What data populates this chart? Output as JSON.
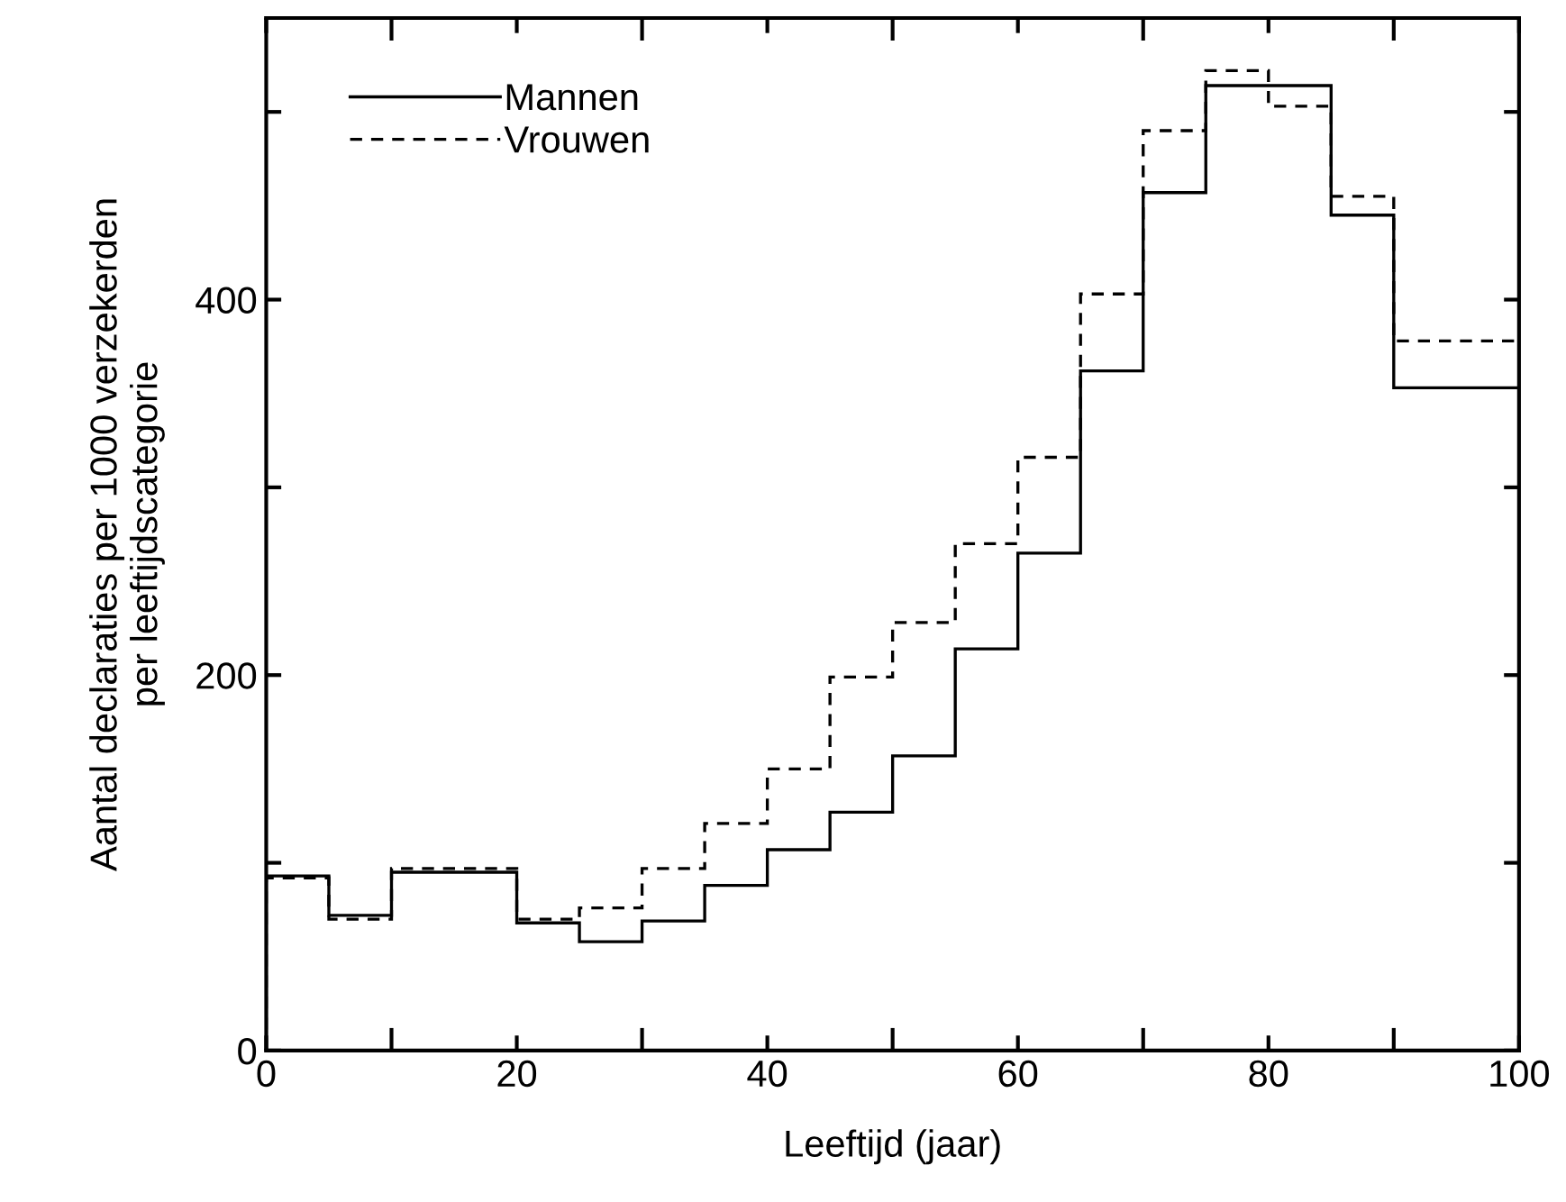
{
  "chart_data": {
    "type": "histogram",
    "xlabel": "Leeftijd (jaar)",
    "ylabel": "Aantal declaraties per 1000 verzekerden\nper leeftijdscategorie",
    "bins": [
      0,
      5,
      10,
      20,
      25,
      30,
      35,
      40,
      45,
      50,
      55,
      60,
      65,
      70,
      75,
      80,
      85,
      90,
      100
    ],
    "series": [
      {
        "name": "Mannen",
        "color": "#000000",
        "line_style": "solid",
        "values": [
          93,
          72,
          95,
          68,
          58,
          69,
          88,
          107,
          127,
          157,
          214,
          265,
          362,
          457,
          514,
          514,
          445,
          353
        ]
      },
      {
        "name": "Vrouwen",
        "color": "#000000",
        "line_style": "dashed",
        "values": [
          92,
          70,
          97,
          70,
          76,
          97,
          121,
          150,
          199,
          228,
          270,
          316,
          403,
          490,
          522,
          503,
          455,
          378
        ]
      }
    ],
    "xlim": [
      0,
      100
    ],
    "ylim": [
      0,
      550
    ],
    "xticks": [
      0,
      {
        "value": 10,
        "label": null
      },
      20,
      {
        "value": 30,
        "label": null
      },
      40,
      {
        "value": 50,
        "label": null
      },
      60,
      {
        "value": 70,
        "label": null
      },
      80,
      {
        "value": 90,
        "label": null
      },
      100
    ],
    "yticks": [
      0,
      {
        "value": 100,
        "label": null
      },
      200,
      {
        "value": 300,
        "label": null
      },
      400,
      {
        "value": 500,
        "label": null
      }
    ],
    "grid": false,
    "legend": "top left"
  }
}
